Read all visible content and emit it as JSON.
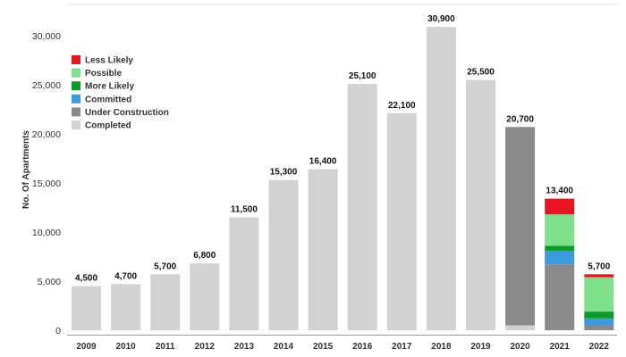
{
  "chart_data": {
    "type": "bar",
    "stacked": true,
    "title": "",
    "xlabel": "",
    "ylabel": "No. Of Apartments",
    "ylim": [
      0,
      32000
    ],
    "yticks": [
      0,
      5000,
      10000,
      15000,
      20000,
      25000,
      30000
    ],
    "ytick_labels": [
      "0",
      "5,000",
      "10,000",
      "15,000",
      "20,000",
      "25,000",
      "30,000"
    ],
    "grid": false,
    "legend_position": "top-left",
    "categories": [
      "2009",
      "2010",
      "2011",
      "2012",
      "2013",
      "2014",
      "2015",
      "2016",
      "2017",
      "2018",
      "2019",
      "2020",
      "2021",
      "2022"
    ],
    "totals": [
      "4,500",
      "4,700",
      "5,700",
      "6,800",
      "11,500",
      "15,300",
      "16,400",
      "25,100",
      "22,100",
      "30,900",
      "25,500",
      "20,700",
      "13,400",
      "5,700"
    ],
    "series": [
      {
        "name": "Completed",
        "color": "#d3d2d3",
        "values": [
          4500,
          4700,
          5700,
          6800,
          11500,
          15300,
          16400,
          25100,
          22100,
          30900,
          25500,
          500,
          0,
          0
        ]
      },
      {
        "name": "Under Construction",
        "color": "#8a898b",
        "values": [
          0,
          0,
          0,
          0,
          0,
          0,
          0,
          0,
          0,
          0,
          0,
          20200,
          6700,
          500
        ]
      },
      {
        "name": "Committed",
        "color": "#3b9bdc",
        "values": [
          0,
          0,
          0,
          0,
          0,
          0,
          0,
          0,
          0,
          0,
          0,
          0,
          1400,
          700
        ]
      },
      {
        "name": "More Likely",
        "color": "#0a9b2c",
        "values": [
          0,
          0,
          0,
          0,
          0,
          0,
          0,
          0,
          0,
          0,
          0,
          0,
          500,
          700
        ]
      },
      {
        "name": "Possible",
        "color": "#7ee08a",
        "values": [
          0,
          0,
          0,
          0,
          0,
          0,
          0,
          0,
          0,
          0,
          0,
          0,
          3200,
          3500
        ]
      },
      {
        "name": "Less Likely",
        "color": "#e8141f",
        "values": [
          0,
          0,
          0,
          0,
          0,
          0,
          0,
          0,
          0,
          0,
          0,
          0,
          1600,
          300
        ]
      }
    ],
    "legend_order": [
      "Less Likely",
      "Possible",
      "More Likely",
      "Committed",
      "Under Construction",
      "Completed"
    ]
  }
}
